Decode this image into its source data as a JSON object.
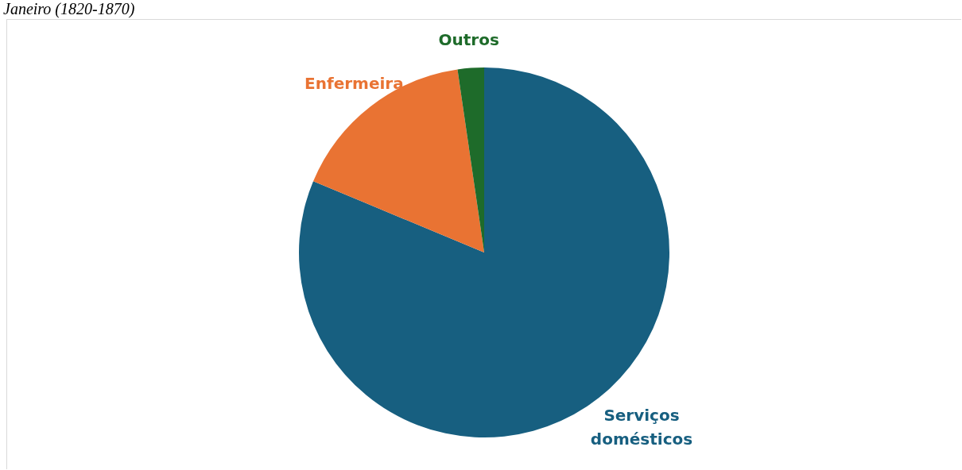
{
  "chart_data": {
    "type": "pie",
    "title": "Janeiro (1820-1870)",
    "categories": [
      "Serviços domésticos",
      "Enfermeira",
      "Outros"
    ],
    "values": [
      81.3,
      16.4,
      2.3
    ],
    "colors": [
      "#175f80",
      "#e97333",
      "#1e6b2a"
    ],
    "legend": false
  }
}
